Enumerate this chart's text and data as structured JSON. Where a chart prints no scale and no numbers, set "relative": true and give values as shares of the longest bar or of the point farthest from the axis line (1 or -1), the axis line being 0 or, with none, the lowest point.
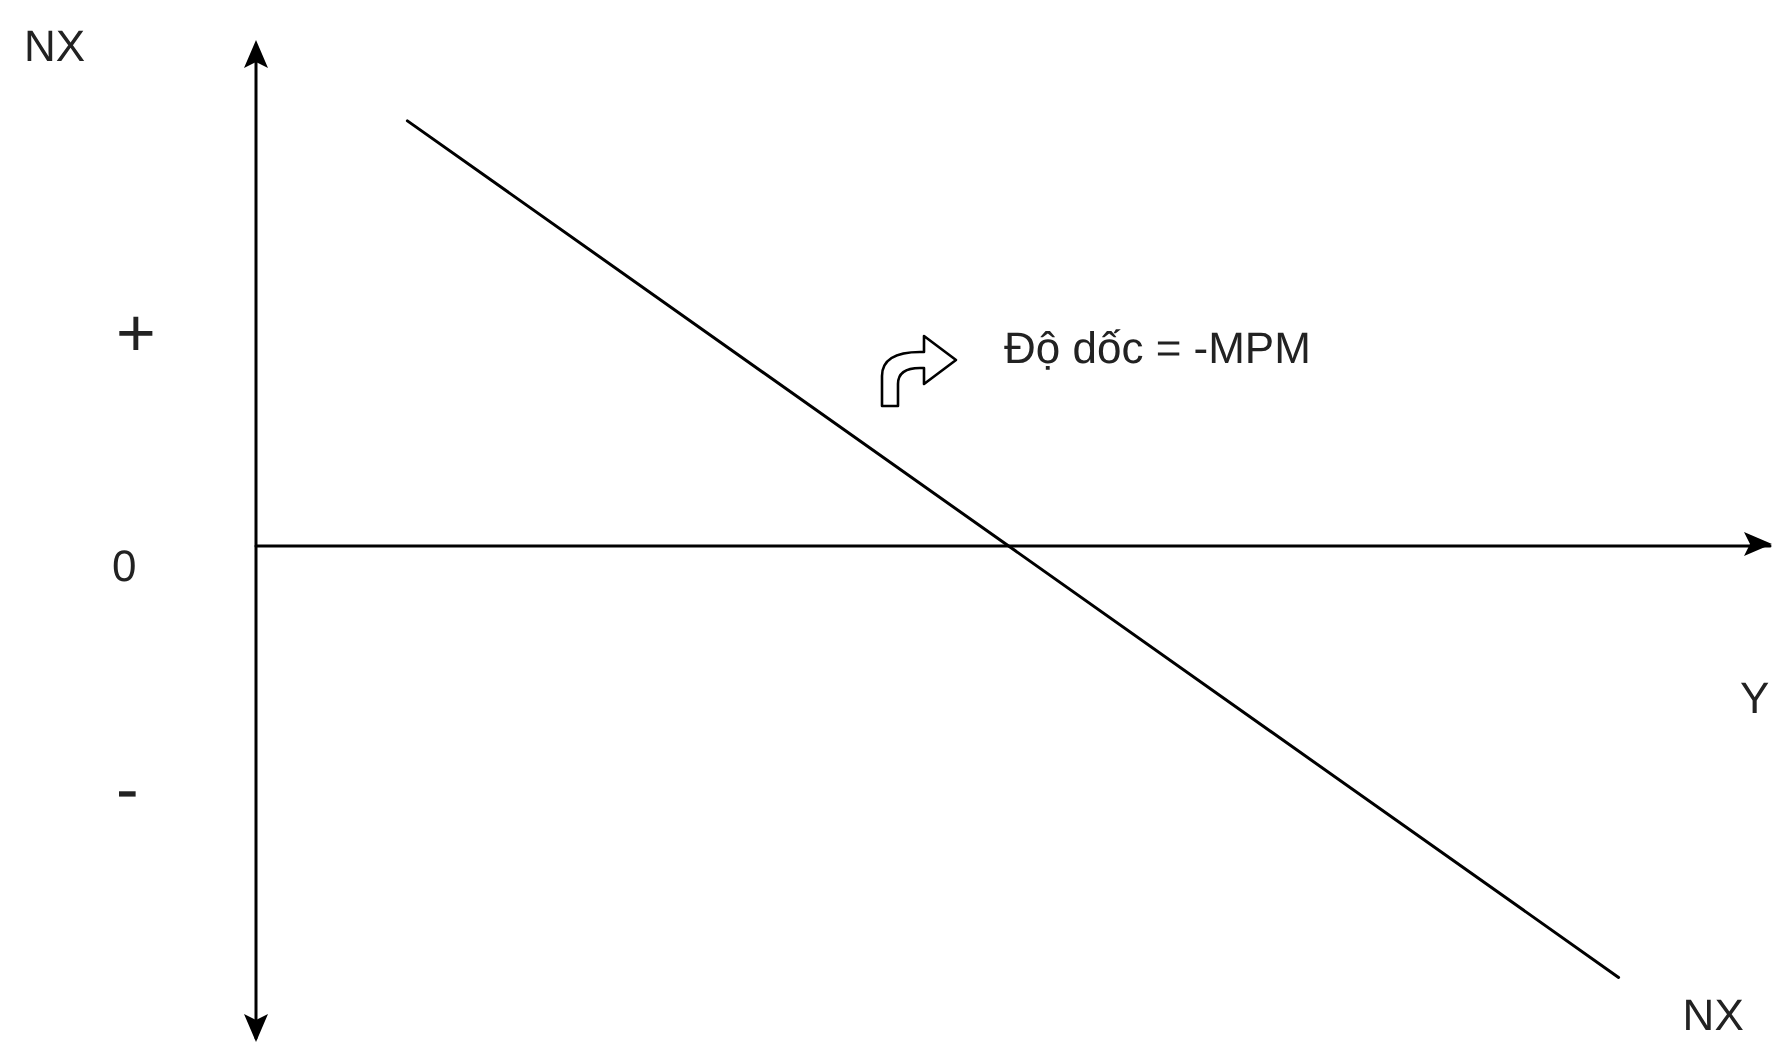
{
  "chart_data": {
    "type": "line",
    "relative": true,
    "xlabel": "Y",
    "ylabel": "NX",
    "categories": [
      null,
      null,
      null,
      null,
      null,
      null,
      null,
      null,
      null,
      null,
      null
    ],
    "series": [
      {
        "name": "NX",
        "color": "#000000",
        "values": [
          null,
          0.98,
          null,
          null,
          null,
          null,
          null,
          null,
          null,
          -1,
          null
        ]
      }
    ],
    "annotations": [
      "+",
      "0",
      "-",
      "Độ dốc = -MPM"
    ],
    "marker": "none",
    "line_style": "solid",
    "grid": false,
    "legend": false
  }
}
